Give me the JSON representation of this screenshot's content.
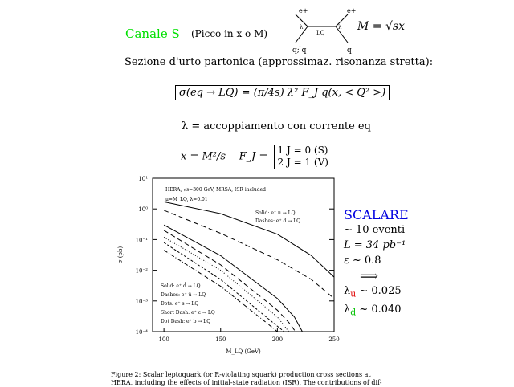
{
  "header": {
    "title": "Canale S",
    "note": "(Picco in x o M)",
    "mass_eq": "M = √sx",
    "diagram": {
      "in_top": "e+",
      "in_bottom": "q; ̄q",
      "out_top": "e+",
      "out_bottom": "q",
      "coupling": "λ",
      "propagator": "LQ"
    }
  },
  "body": {
    "sezione": "Sezione d'urto partonica (approssimaz. risonanza stretta):",
    "formula": "σ(eq → LQ) = (π/4s) λ² F_J q(x, < Q² >)",
    "lambda_def": "λ = accoppiamento con corrente eq",
    "x_def": "x = M²/s",
    "fj_label": "F_J =",
    "fj_case1": "1  J = 0 (S)",
    "fj_case2": "2  J = 1 (V)"
  },
  "results": {
    "title": "SCALARE",
    "events": "~ 10 eventi",
    "lumi": "L = 34 pb⁻¹",
    "eff": "ε ~ 0.8",
    "arrow": "⟹",
    "lu_sym": "λ",
    "lu_sub": "u",
    "lu_val": " ~ 0.025",
    "ld_sym": "λ",
    "ld_sub": "d",
    "ld_val": " ~ 0.040",
    "colors": {
      "title": "#0000e0",
      "u": "#e00000",
      "d": "#00c000",
      "canale": "#00e000"
    }
  },
  "caption": {
    "line1": "Figure 2:    Scalar leptoquark (or R-violating squark) production cross sections at",
    "line2": "HERA, including the effects of initial-state radiation (ISR). The contributions of dif-"
  },
  "chart_data": {
    "type": "line",
    "xlabel": "M_LQ (GeV)",
    "ylabel": "σ (pb)",
    "xlim": [
      90,
      250
    ],
    "ylim": [
      0.0001,
      10
    ],
    "yscale": "log",
    "xticks": [
      "100",
      "150",
      "200",
      "250"
    ],
    "yticks": [
      "10¹",
      "10⁰",
      "10⁻¹",
      "10⁻²",
      "10⁻³",
      "10⁻⁴"
    ],
    "annotations": [
      "HERA, √s=300 GeV, MRSA, ISR included",
      "μ=M_LQ, λ=0.01"
    ],
    "legend_top": [
      "Solid: e⁺ u → LQ",
      "Dashes: e⁺ d → LQ"
    ],
    "legend_bottom": [
      "Solid: e⁺ d̄ → LQ",
      "Dashes: e⁺ ū → LQ",
      "Dots: e⁺ s → LQ",
      "Short Dash: e⁺ c → LQ",
      "Dot Dash: e⁺ b → LQ"
    ],
    "series": [
      {
        "name": "e+ u → LQ",
        "style": "solid",
        "x": [
          100,
          150,
          200,
          230,
          250
        ],
        "y": [
          1.7,
          0.7,
          0.15,
          0.03,
          0.006
        ]
      },
      {
        "name": "e+ d → LQ",
        "style": "dash",
        "x": [
          100,
          150,
          200,
          230,
          250
        ],
        "y": [
          0.9,
          0.16,
          0.022,
          0.005,
          0.0012
        ]
      },
      {
        "name": "e+ d̄ → LQ",
        "style": "solid",
        "x": [
          100,
          150,
          200,
          215,
          222
        ],
        "y": [
          0.3,
          0.03,
          0.0012,
          0.0003,
          0.0001
        ]
      },
      {
        "name": "e+ ū → LQ",
        "style": "dash",
        "x": [
          100,
          150,
          200,
          210,
          216
        ],
        "y": [
          0.2,
          0.015,
          0.0005,
          0.0002,
          0.0001
        ]
      },
      {
        "name": "e+ s → LQ",
        "style": "dots",
        "x": [
          100,
          150,
          200,
          210
        ],
        "y": [
          0.12,
          0.01,
          0.0003,
          0.0001
        ]
      },
      {
        "name": "e+ c → LQ",
        "style": "shortdash",
        "x": [
          100,
          150,
          200,
          206
        ],
        "y": [
          0.08,
          0.005,
          0.00015,
          0.0001
        ]
      },
      {
        "name": "e+ b → LQ",
        "style": "dotdash",
        "x": [
          100,
          150,
          190,
          200
        ],
        "y": [
          0.045,
          0.003,
          0.0002,
          0.0001
        ]
      }
    ]
  }
}
